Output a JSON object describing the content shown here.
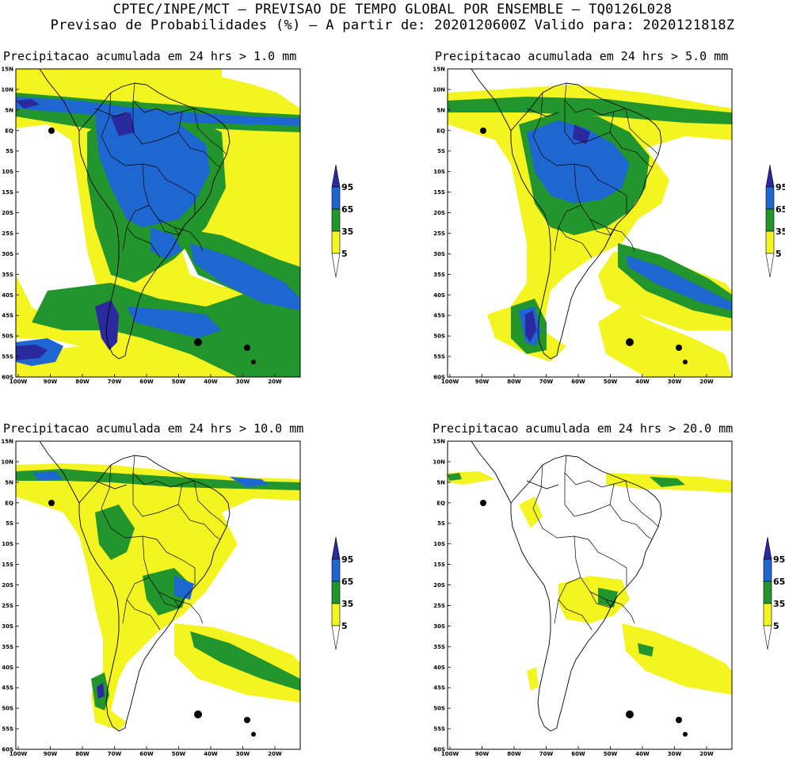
{
  "header": {
    "line1": "CPTEC/INPE/MCT – PREVISAO DE TEMPO GLOBAL POR ENSEMBLE – TQ0126L028",
    "line2": "Previsao de Probabilidades (%) –  A partir de: 2020120600Z  Valido para: 2020121818Z"
  },
  "axes": {
    "lat_labels": [
      "15N",
      "10N",
      "5N",
      "EQ",
      "5S",
      "10S",
      "15S",
      "20S",
      "25S",
      "30S",
      "35S",
      "40S",
      "45S",
      "50S",
      "55S",
      "60S"
    ],
    "lon_labels": [
      "100W",
      "90W",
      "80W",
      "70W",
      "60W",
      "50W",
      "40W",
      "30W",
      "20W"
    ]
  },
  "colorbar": {
    "levels": [
      "95",
      "65",
      "35",
      "5"
    ],
    "colors": {
      "c95": "#2a2a9e",
      "c65": "#1e66d0",
      "c35": "#22962c",
      "c5": "#f4f420",
      "missing": "#ffffff"
    }
  },
  "panels": [
    {
      "label": "Precipitacao acumulada em 24 hrs > 1.0 mm"
    },
    {
      "label": "Precipitacao acumulada em 24 hrs > 5.0 mm"
    },
    {
      "label": "Precipitacao acumulada em 24 hrs > 10.0 mm"
    },
    {
      "label": "Precipitacao acumulada em 24 hrs > 20.0 mm"
    }
  ]
}
